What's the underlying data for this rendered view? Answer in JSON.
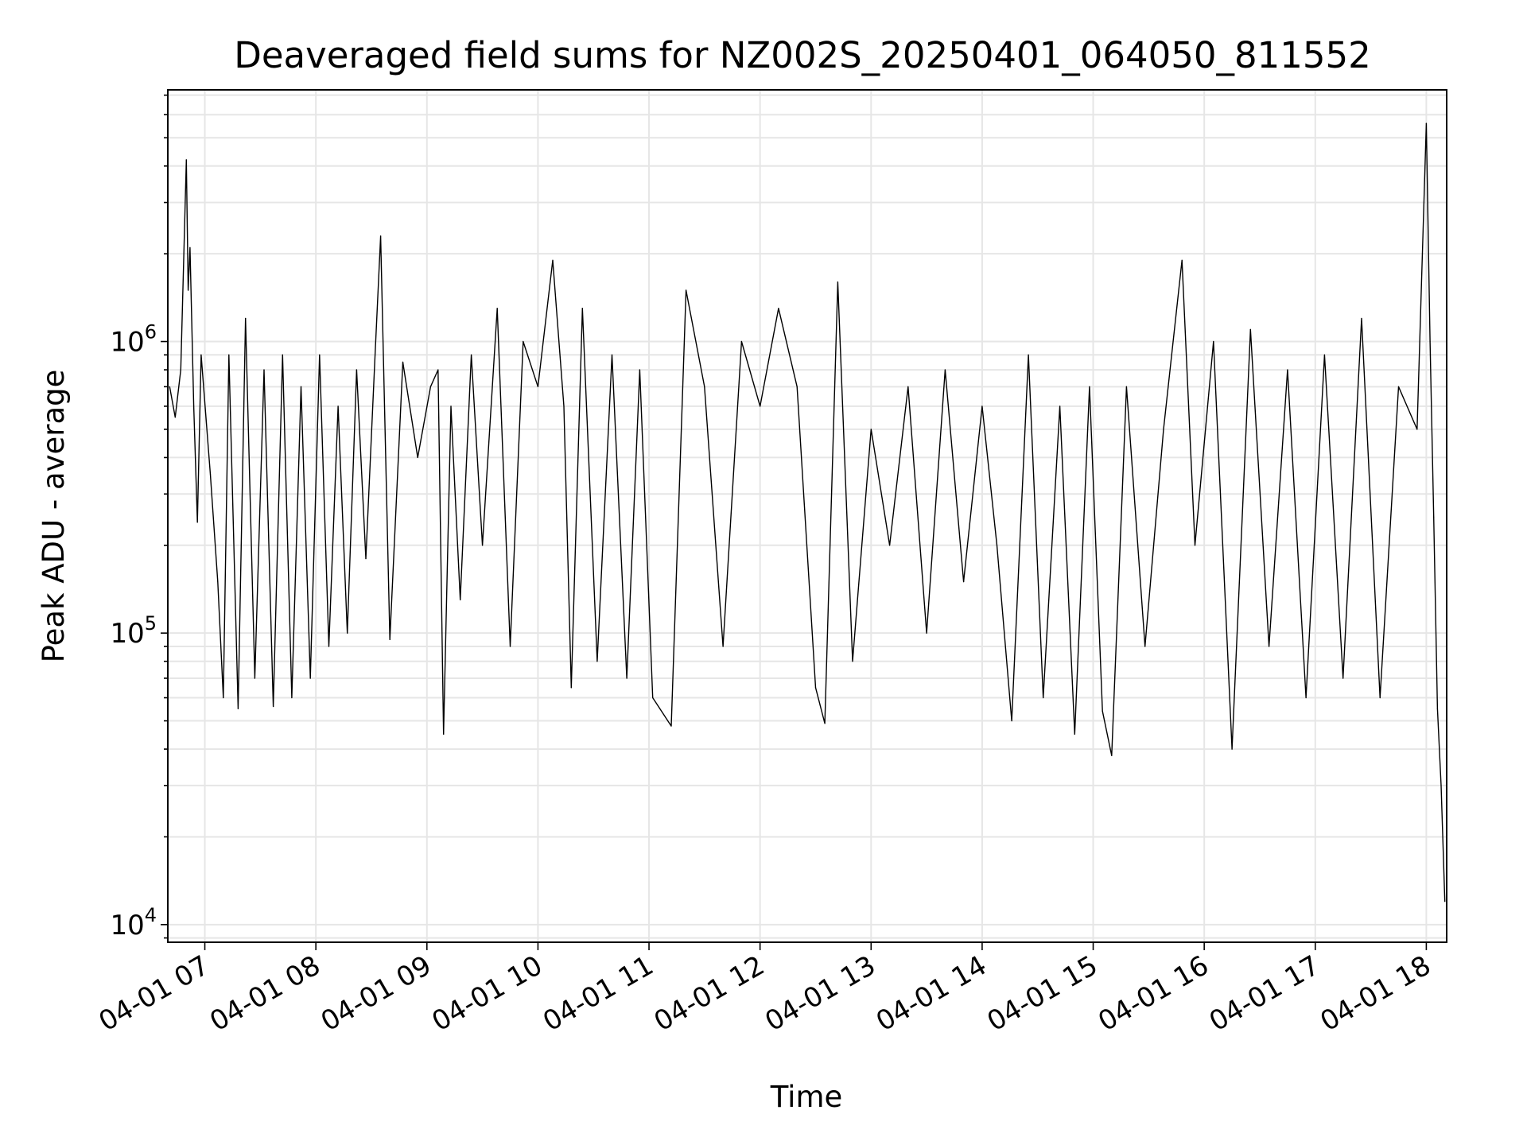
{
  "chart_data": {
    "type": "line",
    "title": "Deaveraged field sums for NZ002S_20250401_064050_811552",
    "xlabel": "Time",
    "ylabel": "Peak ADU - average",
    "y_scale": "log",
    "grid": true,
    "line_color": "#000000",
    "grid_color": "#e6e6e6",
    "x_range": [
      "04-01 06:40",
      "04-01 18:11"
    ],
    "ylim": [
      8700,
      7300000
    ],
    "x_ticks": [
      {
        "time": "04-01 07:00",
        "label": "04-01 07"
      },
      {
        "time": "04-01 08:00",
        "label": "04-01 08"
      },
      {
        "time": "04-01 09:00",
        "label": "04-01 09"
      },
      {
        "time": "04-01 10:00",
        "label": "04-01 10"
      },
      {
        "time": "04-01 11:00",
        "label": "04-01 11"
      },
      {
        "time": "04-01 12:00",
        "label": "04-01 12"
      },
      {
        "time": "04-01 13:00",
        "label": "04-01 13"
      },
      {
        "time": "04-01 14:00",
        "label": "04-01 14"
      },
      {
        "time": "04-01 15:00",
        "label": "04-01 15"
      },
      {
        "time": "04-01 16:00",
        "label": "04-01 16"
      },
      {
        "time": "04-01 17:00",
        "label": "04-01 17"
      },
      {
        "time": "04-01 18:00",
        "label": "04-01 18"
      }
    ],
    "y_ticks": [
      {
        "value": 10000,
        "base": "10",
        "exp": "4"
      },
      {
        "value": 100000,
        "base": "10",
        "exp": "5"
      },
      {
        "value": 1000000,
        "base": "10",
        "exp": "6"
      }
    ],
    "series": [
      {
        "values_note_omitted": "",
        "points": [
          [
            "04-01 06:41",
            700000
          ],
          [
            "04-01 06:44",
            550000
          ],
          [
            "04-01 06:47",
            800000
          ],
          [
            "04-01 06:50",
            4200000
          ],
          [
            "04-01 06:51",
            1500000
          ],
          [
            "04-01 06:52",
            2100000
          ],
          [
            "04-01 06:54",
            600000
          ],
          [
            "04-01 06:56",
            240000
          ],
          [
            "04-01 06:58",
            900000
          ],
          [
            "04-01 07:03",
            350000
          ],
          [
            "04-01 07:07",
            150000
          ],
          [
            "04-01 07:10",
            60000
          ],
          [
            "04-01 07:13",
            900000
          ],
          [
            "04-01 07:18",
            55000
          ],
          [
            "04-01 07:22",
            1200000
          ],
          [
            "04-01 07:27",
            70000
          ],
          [
            "04-01 07:32",
            800000
          ],
          [
            "04-01 07:37",
            56000
          ],
          [
            "04-01 07:42",
            900000
          ],
          [
            "04-01 07:47",
            60000
          ],
          [
            "04-01 07:52",
            700000
          ],
          [
            "04-01 07:57",
            70000
          ],
          [
            "04-01 08:02",
            900000
          ],
          [
            "04-01 08:07",
            90000
          ],
          [
            "04-01 08:12",
            600000
          ],
          [
            "04-01 08:17",
            100000
          ],
          [
            "04-01 08:22",
            800000
          ],
          [
            "04-01 08:27",
            180000
          ],
          [
            "04-01 08:32",
            900000
          ],
          [
            "04-01 08:35",
            2300000
          ],
          [
            "04-01 08:40",
            95000
          ],
          [
            "04-01 08:47",
            850000
          ],
          [
            "04-01 08:55",
            400000
          ],
          [
            "04-01 09:02",
            700000
          ],
          [
            "04-01 09:06",
            800000
          ],
          [
            "04-01 09:09",
            45000
          ],
          [
            "04-01 09:13",
            600000
          ],
          [
            "04-01 09:18",
            130000
          ],
          [
            "04-01 09:24",
            900000
          ],
          [
            "04-01 09:30",
            200000
          ],
          [
            "04-01 09:38",
            1300000
          ],
          [
            "04-01 09:45",
            90000
          ],
          [
            "04-01 09:52",
            1000000
          ],
          [
            "04-01 10:00",
            700000
          ],
          [
            "04-01 10:08",
            1900000
          ],
          [
            "04-01 10:14",
            600000
          ],
          [
            "04-01 10:18",
            65000
          ],
          [
            "04-01 10:24",
            1300000
          ],
          [
            "04-01 10:32",
            80000
          ],
          [
            "04-01 10:40",
            900000
          ],
          [
            "04-01 10:48",
            70000
          ],
          [
            "04-01 10:55",
            800000
          ],
          [
            "04-01 11:02",
            60000
          ],
          [
            "04-01 11:12",
            48000
          ],
          [
            "04-01 11:20",
            1500000
          ],
          [
            "04-01 11:30",
            700000
          ],
          [
            "04-01 11:40",
            90000
          ],
          [
            "04-01 11:50",
            1000000
          ],
          [
            "04-01 12:00",
            600000
          ],
          [
            "04-01 12:10",
            1300000
          ],
          [
            "04-01 12:20",
            700000
          ],
          [
            "04-01 12:30",
            65000
          ],
          [
            "04-01 12:35",
            49000
          ],
          [
            "04-01 12:42",
            1600000
          ],
          [
            "04-01 12:50",
            80000
          ],
          [
            "04-01 13:00",
            500000
          ],
          [
            "04-01 13:10",
            200000
          ],
          [
            "04-01 13:20",
            700000
          ],
          [
            "04-01 13:30",
            100000
          ],
          [
            "04-01 13:40",
            800000
          ],
          [
            "04-01 13:50",
            150000
          ],
          [
            "04-01 14:00",
            600000
          ],
          [
            "04-01 14:08",
            200000
          ],
          [
            "04-01 14:16",
            50000
          ],
          [
            "04-01 14:25",
            900000
          ],
          [
            "04-01 14:33",
            60000
          ],
          [
            "04-01 14:42",
            600000
          ],
          [
            "04-01 14:50",
            45000
          ],
          [
            "04-01 14:58",
            700000
          ],
          [
            "04-01 15:05",
            54000
          ],
          [
            "04-01 15:10",
            38000
          ],
          [
            "04-01 15:18",
            700000
          ],
          [
            "04-01 15:28",
            90000
          ],
          [
            "04-01 15:38",
            500000
          ],
          [
            "04-01 15:48",
            1900000
          ],
          [
            "04-01 15:55",
            200000
          ],
          [
            "04-01 16:05",
            1000000
          ],
          [
            "04-01 16:15",
            40000
          ],
          [
            "04-01 16:25",
            1100000
          ],
          [
            "04-01 16:35",
            90000
          ],
          [
            "04-01 16:45",
            800000
          ],
          [
            "04-01 16:55",
            60000
          ],
          [
            "04-01 17:05",
            900000
          ],
          [
            "04-01 17:15",
            70000
          ],
          [
            "04-01 17:25",
            1200000
          ],
          [
            "04-01 17:35",
            60000
          ],
          [
            "04-01 17:45",
            700000
          ],
          [
            "04-01 17:55",
            500000
          ],
          [
            "04-01 18:00",
            5600000
          ],
          [
            "04-01 18:02",
            1000000
          ],
          [
            "04-01 18:04",
            250000
          ],
          [
            "04-01 18:06",
            55000
          ],
          [
            "04-01 18:08",
            30000
          ],
          [
            "04-01 18:10",
            12000
          ]
        ]
      }
    ]
  }
}
